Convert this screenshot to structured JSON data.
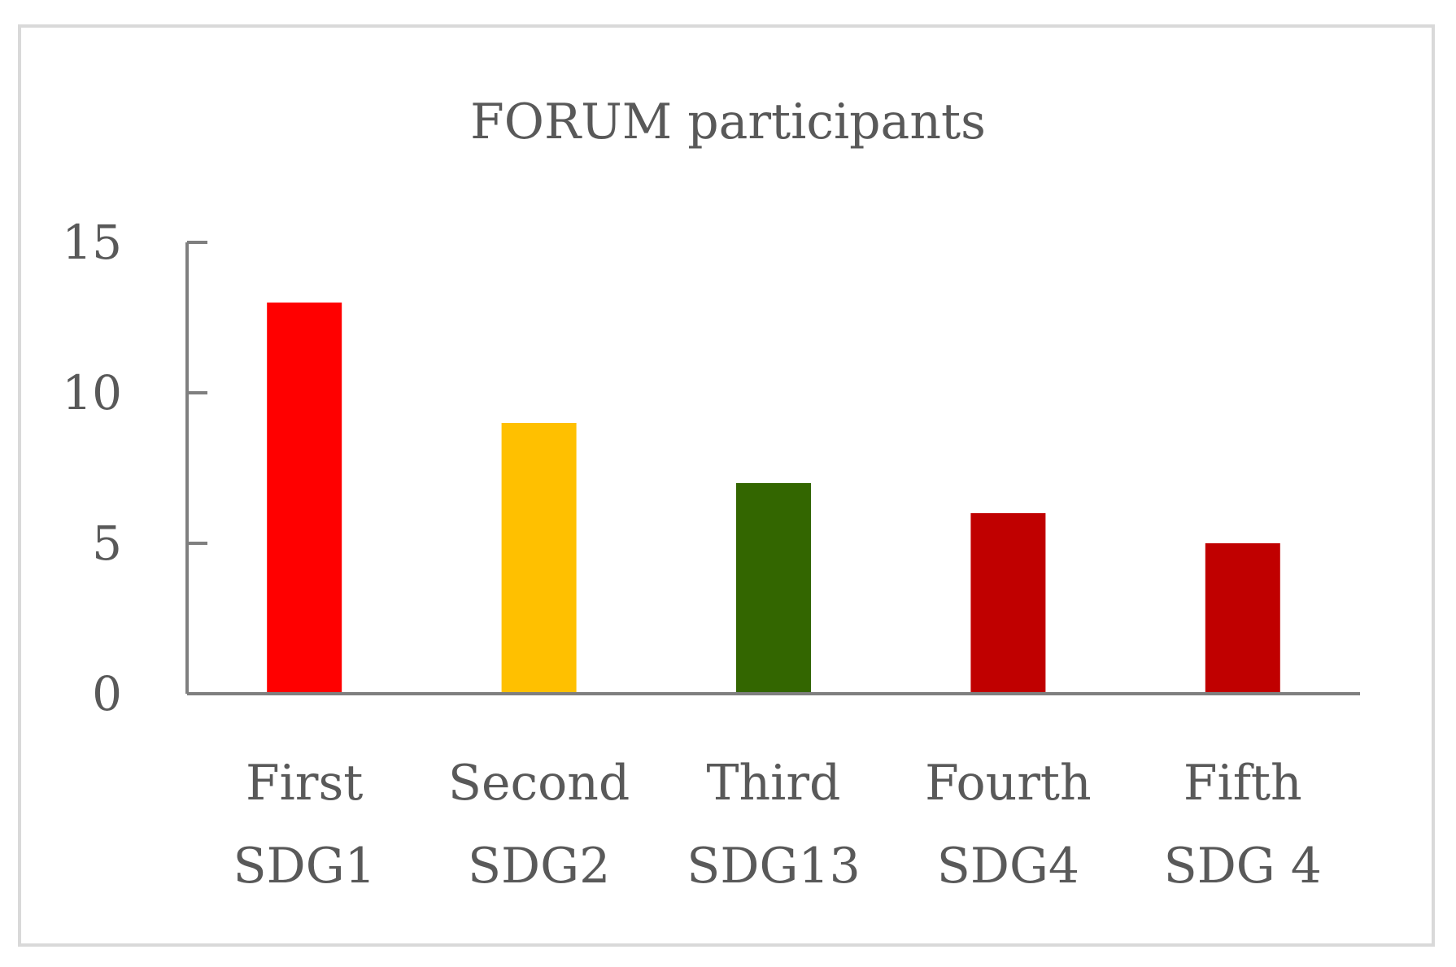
{
  "chart_data": {
    "type": "bar",
    "title": "FORUM participants",
    "xlabel": "",
    "ylabel": "",
    "ylim": [
      0,
      15
    ],
    "yticks": [
      0,
      5,
      10,
      15
    ],
    "grid": false,
    "categories": [
      {
        "line1": "First",
        "line2": "SDG1"
      },
      {
        "line1": "Second",
        "line2": "SDG2"
      },
      {
        "line1": "Third",
        "line2": "SDG13"
      },
      {
        "line1": "Fourth",
        "line2": "SDG4"
      },
      {
        "line1": "Fifth",
        "line2": "SDG 4"
      }
    ],
    "values": [
      13,
      9,
      7,
      6,
      5
    ],
    "bar_colors": [
      "#ff0000",
      "#ffc000",
      "#336600",
      "#c00000",
      "#c00000"
    ],
    "axis_color": "#7f7f7f",
    "text_color": "#595959"
  }
}
